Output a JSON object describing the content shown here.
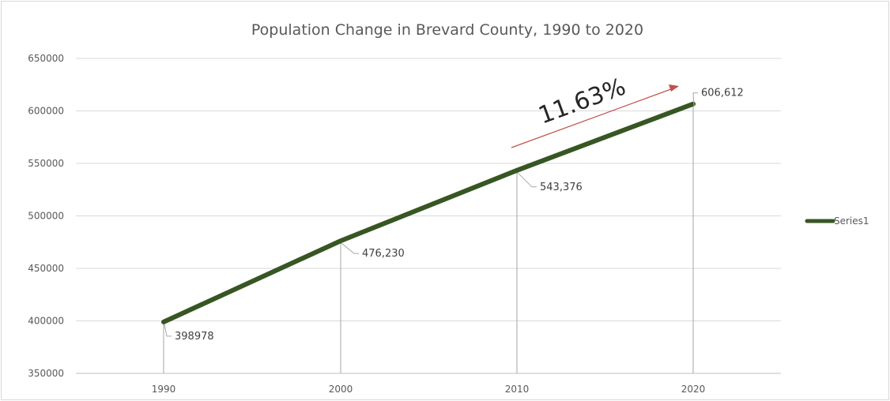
{
  "chart_data": {
    "type": "line",
    "title": "Population Change in Brevard County, 1990 to 2020",
    "xlabel": "",
    "ylabel": "",
    "categories": [
      "1990",
      "2000",
      "2010",
      "2020"
    ],
    "series": [
      {
        "name": "Series1",
        "values": [
          398978,
          476230,
          543376,
          606612
        ],
        "color": "#375623",
        "data_labels": [
          "398978",
          "476,230",
          "543,376",
          "606,612"
        ]
      }
    ],
    "ylim": [
      350000,
      650000
    ],
    "y_ticks": [
      "350000",
      "400000",
      "450000",
      "500000",
      "550000",
      "600000",
      "650000"
    ],
    "grid": "horizontal",
    "legend": "right",
    "annotation": {
      "text": "11.63%",
      "arrow_color": "#c0504d"
    }
  }
}
